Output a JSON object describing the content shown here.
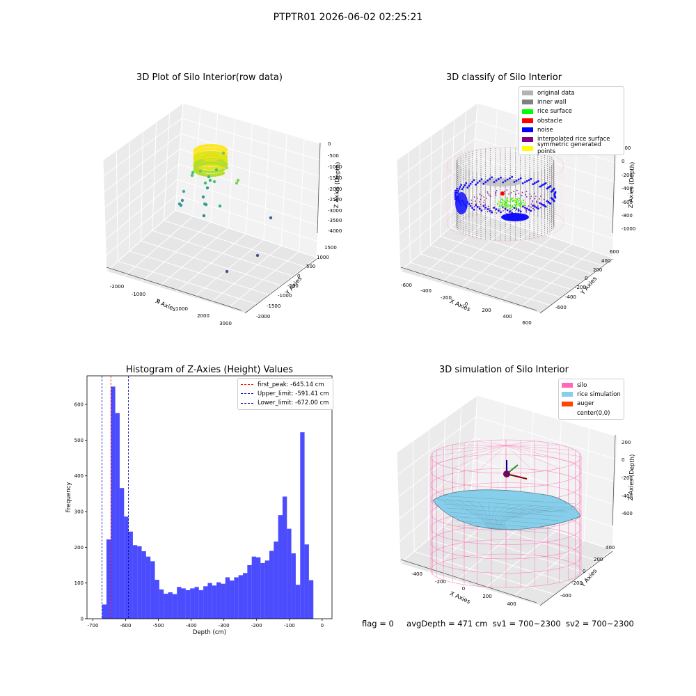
{
  "suptitle": "PTPTR01 2026-06-02 02:25:21",
  "panels": {
    "raw": {
      "title": "3D Plot of Silo Interior(row data)",
      "xlabel": "X Axies",
      "ylabel": "Y Axies",
      "zlabel": "Z Axies (Depth)",
      "xticks": [
        "-2000",
        "-1000",
        "0",
        "1000",
        "2000",
        "3000"
      ],
      "yticks": [
        "1500",
        "1000",
        "500",
        "0",
        "-500",
        "-1000",
        "-1500",
        "-2000"
      ],
      "zticks": [
        "0",
        "-500",
        "-1000",
        "-1500",
        "-2000",
        "-2500",
        "-3000",
        "-3500",
        "-4000"
      ]
    },
    "classify": {
      "title": "3D classify of Silo Interior",
      "xlabel": "X Axies",
      "ylabel": "Y Axies",
      "zlabel": "Z Axies (Depth)",
      "xticks": [
        "-600",
        "-400",
        "-200",
        "0",
        "200",
        "400",
        "600"
      ],
      "yticks": [
        "600",
        "400",
        "200",
        "0",
        "-200",
        "-400",
        "-600"
      ],
      "zticks": [
        "200",
        "0",
        "-200",
        "-400",
        "-600",
        "-800",
        "-1000"
      ],
      "legend": [
        {
          "label": "original data",
          "color": "#b3b3b3"
        },
        {
          "label": "inner wall",
          "color": "#808080"
        },
        {
          "label": "rice surface",
          "color": "#00ff00"
        },
        {
          "label": "obstacle",
          "color": "#ff0000"
        },
        {
          "label": "noise",
          "color": "#0000ff"
        },
        {
          "label": "interpolated rice surface",
          "color": "#800080"
        },
        {
          "label": "symmetric generated points",
          "color": "#ffff00"
        }
      ]
    },
    "simulation": {
      "title": "3D simulation of Silo Interior",
      "xlabel": "X Axies",
      "ylabel": "Y Axies",
      "zlabel": "Z Axies (Depth)",
      "xticks": [
        "-400",
        "-200",
        "0",
        "200",
        "400"
      ],
      "yticks": [
        "400",
        "200",
        "0",
        "-200",
        "-400"
      ],
      "zticks": [
        "200",
        "0",
        "-200",
        "-400",
        "-600"
      ],
      "legend": [
        {
          "label": "silo",
          "color": "#ff69b4"
        },
        {
          "label": "rice simulation",
          "color": "#87ceeb"
        },
        {
          "label": "auger",
          "color": "#ff4500"
        },
        {
          "label": "center(0,0)",
          "color": "#ffffff"
        }
      ]
    }
  },
  "chart_data": {
    "type": "bar",
    "title": "Histogram of Z-Axies (Height) Values",
    "xlabel": "Depth (cm)",
    "ylabel": "Frequency",
    "xlim": [
      -718,
      30
    ],
    "ylim": [
      0,
      680
    ],
    "xticks": [
      -700,
      -600,
      -500,
      -400,
      -300,
      -200,
      -100,
      0
    ],
    "yticks": [
      0,
      100,
      200,
      300,
      400,
      500,
      600
    ],
    "bin_start": -672,
    "bin_width": 13.44,
    "values": [
      40,
      222,
      650,
      576,
      366,
      286,
      244,
      206,
      203,
      189,
      174,
      161,
      109,
      82,
      70,
      74,
      69,
      89,
      85,
      80,
      85,
      89,
      80,
      91,
      100,
      93,
      102,
      98,
      116,
      107,
      116,
      122,
      128,
      150,
      174,
      172,
      156,
      163,
      190,
      216,
      290,
      342,
      252,
      183,
      95,
      522,
      208,
      108
    ],
    "color": "#0000ff",
    "vlines": [
      {
        "label": "first_peak: -645.14 cm",
        "x": -645.14,
        "color": "#ff0000"
      },
      {
        "label": "Upper_limit: -591.41 cm",
        "x": -591.41,
        "color": "#0000aa"
      },
      {
        "label": "Lower_limit: -672.00 cm",
        "x": -672.0,
        "color": "#0000aa"
      }
    ]
  },
  "status": {
    "flag": "flag = 0",
    "avg_depth": "avgDepth = 471 cm",
    "sv1": "sv1 = 700~2300",
    "sv2": "sv2 = 700~2300"
  }
}
